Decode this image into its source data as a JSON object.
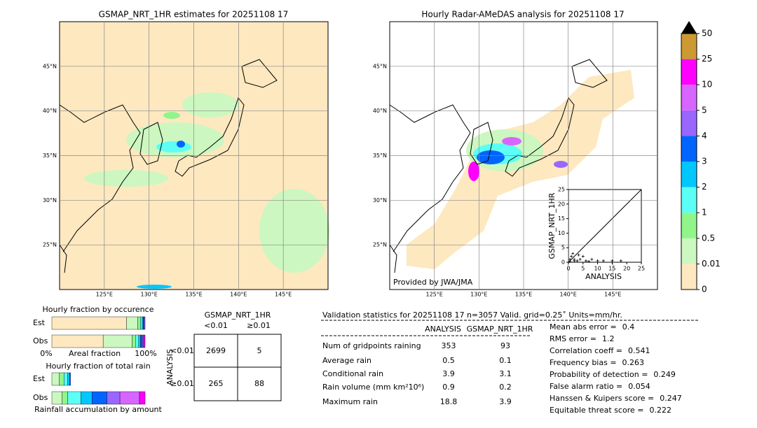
{
  "left_map": {
    "title": "GSMAP_NRT_1HR estimates for 20251108 17",
    "xlim": [
      120,
      150
    ],
    "ylim": [
      20,
      50
    ],
    "xticks": [
      {
        "value": 125,
        "label": "125°E"
      },
      {
        "value": 130,
        "label": "130°E"
      },
      {
        "value": 135,
        "label": "135°E"
      },
      {
        "value": 140,
        "label": "140°E"
      },
      {
        "value": 145,
        "label": "145°E"
      }
    ],
    "yticks": [
      {
        "value": 25,
        "label": "25°N"
      },
      {
        "value": 30,
        "label": "30°N"
      },
      {
        "value": 35,
        "label": "35°N"
      },
      {
        "value": 40,
        "label": "40°N"
      },
      {
        "value": 45,
        "label": "45°N"
      }
    ]
  },
  "right_map": {
    "title": "Hourly Radar-AMeDAS analysis for 20251108 17",
    "credit": "Provided by JWA/JMA",
    "xlim": [
      120,
      150
    ],
    "ylim": [
      20,
      50
    ],
    "xticks": [
      {
        "value": 125,
        "label": "125°E"
      },
      {
        "value": 130,
        "label": "130°E"
      },
      {
        "value": 135,
        "label": "135°E"
      },
      {
        "value": 140,
        "label": "140°E"
      },
      {
        "value": 145,
        "label": "145°E"
      }
    ],
    "yticks": [
      {
        "value": 25,
        "label": "25°N"
      },
      {
        "value": 30,
        "label": "30°N"
      },
      {
        "value": 35,
        "label": "35°N"
      },
      {
        "value": 40,
        "label": "40°N"
      },
      {
        "value": 45,
        "label": "45°N"
      }
    ]
  },
  "colorbar": {
    "ticks": [
      0,
      0.01,
      0.5,
      1,
      2,
      3,
      4,
      5,
      10,
      25,
      50
    ],
    "colors": [
      "#fde8c0",
      "#ccf7c0",
      "#90f58a",
      "#5cfff5",
      "#00c8ff",
      "#0064ff",
      "#9966ff",
      "#d666ff",
      "#ff00ff",
      "#cc9933"
    ],
    "extend_color": "#000000"
  },
  "scatter": {
    "xlabel": "ANALYSIS",
    "ylabel": "GSMAP_NRT_1HR",
    "xlim": [
      0,
      25
    ],
    "ylim": [
      0,
      25
    ],
    "xticks": [
      0,
      5,
      10,
      15,
      20,
      25
    ],
    "yticks": [
      0,
      5,
      10,
      15,
      20,
      25
    ],
    "x": [
      0.5,
      1,
      2,
      3,
      1.5,
      4,
      5,
      6,
      8,
      10,
      12,
      15,
      18,
      2,
      0.5,
      3.5,
      7
    ],
    "y": [
      1,
      2,
      1,
      0.5,
      3,
      1,
      2,
      0.5,
      1,
      0.5,
      0.5,
      0.5,
      0.5,
      0.5,
      0.3,
      2.5,
      0.3
    ]
  },
  "occurrence": {
    "title": "Hourly fraction by occurence",
    "x_labels": [
      "0%",
      "Areal fraction",
      "100%"
    ],
    "colors": [
      "#fde8c0",
      "#ccf7c0",
      "#90f58a",
      "#5cfff5",
      "#00c8ff",
      "#0064ff",
      "#9966ff",
      "#d666ff",
      "#ff00ff"
    ],
    "rows": [
      {
        "label": "Est",
        "values": [
          0.8,
          0.12,
          0.03,
          0.02,
          0.01,
          0.01,
          0.01,
          0,
          0
        ]
      },
      {
        "label": "Obs",
        "values": [
          0.55,
          0.31,
          0.04,
          0.03,
          0.02,
          0.02,
          0.01,
          0.01,
          0.01
        ]
      }
    ]
  },
  "total_rain": {
    "title": "Hourly fraction of total rain",
    "x_label": "Rainfall accumulation by amount",
    "colors": [
      "#ccf7c0",
      "#90f58a",
      "#5cfff5",
      "#00c8ff",
      "#0064ff",
      "#9966ff",
      "#d666ff",
      "#ff00ff"
    ],
    "rows": [
      {
        "label": "Est",
        "values": [
          0.08,
          0.05,
          0.04,
          0.02,
          0.01,
          0,
          0,
          0
        ]
      },
      {
        "label": "Obs",
        "values": [
          0.11,
          0.06,
          0.14,
          0.12,
          0.16,
          0.14,
          0.21,
          0.06
        ]
      }
    ]
  },
  "contingency": {
    "title": "GSMAP_NRT_1HR",
    "row_axis": "ANALYSIS",
    "columns": [
      "<0.01",
      "≥0.01"
    ],
    "rows": [
      "<0.01",
      "≥0.01"
    ],
    "cells": [
      [
        2699,
        5
      ],
      [
        265,
        88
      ]
    ]
  },
  "validation": {
    "title": "Validation statistics for 20251108 17  n=3057 Valid. grid=0.25˚ Units=mm/hr.",
    "columns": [
      "ANALYSIS",
      "GSMAP_NRT_1HR"
    ],
    "rows": [
      [
        "Num of gridpoints raining",
        353,
        93
      ],
      [
        "Average rain",
        0.5,
        0.1
      ],
      [
        "Conditional rain",
        3.9,
        3.1
      ],
      [
        "Rain volume (mm km²10⁶)",
        0.9,
        0.2
      ],
      [
        "Maximum rain",
        18.8,
        3.9
      ]
    ],
    "scores": [
      [
        "Mean abs error =",
        0.4
      ],
      [
        "RMS error =",
        1.2
      ],
      [
        "Correlation coeff =",
        0.541
      ],
      [
        "Frequency bias =",
        0.263
      ],
      [
        "Probability of detection =",
        0.249
      ],
      [
        "False alarm ratio =",
        0.054
      ],
      [
        "Hanssen & Kuipers score =",
        0.247
      ],
      [
        "Equitable threat score =",
        0.222
      ]
    ]
  }
}
